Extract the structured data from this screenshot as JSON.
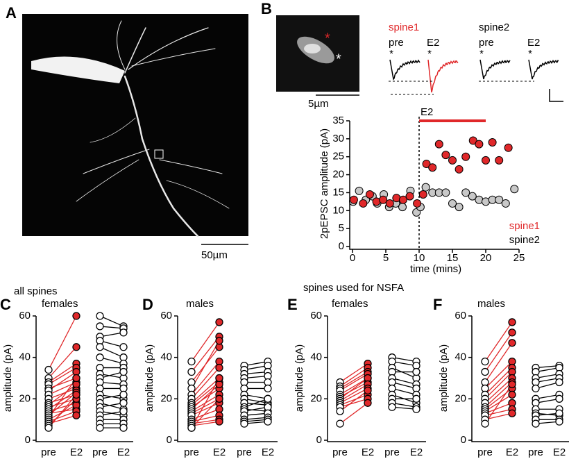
{
  "panel_labels": [
    "A",
    "B",
    "C",
    "D",
    "E",
    "F"
  ],
  "image_a": {
    "scale_label": "50µm"
  },
  "image_b": {
    "scale_label": "5µm",
    "markers": [
      "*",
      "*"
    ]
  },
  "traces": [
    {
      "title": "spine1",
      "color": "#e0282a",
      "conditions": [
        "pre",
        "E2"
      ],
      "markers": [
        "*",
        "*"
      ]
    },
    {
      "title": "spine2",
      "color": "#000000",
      "conditions": [
        "pre",
        "E2"
      ],
      "markers": [
        "*",
        "*"
      ]
    }
  ],
  "groups": [
    {
      "heading": "all spines"
    },
    {
      "heading": "spines used for NSFA"
    }
  ],
  "chart_data": [
    {
      "type": "scatter",
      "ylabel": "2pEPSC amplitude (pA)",
      "xlabel": "time (mins)",
      "xlim": [
        0,
        25
      ],
      "ylim": [
        0,
        35
      ],
      "xticks": [
        0,
        5,
        10,
        15,
        20,
        25
      ],
      "yticks": [
        0,
        5,
        10,
        15,
        20,
        25,
        30,
        35
      ],
      "event": {
        "label": "E2",
        "start": 10,
        "end": 20,
        "level": 35,
        "color": "#e0282a"
      },
      "series": [
        {
          "name": "spine2",
          "color": "#c8c8c8",
          "text_color": "#000000",
          "x": [
            0.1,
            1,
            2,
            3,
            3.7,
            4.7,
            5.5,
            6.5,
            7.5,
            8.7,
            9.6,
            10.2,
            11,
            12,
            13,
            14,
            15,
            16,
            17,
            18,
            19,
            20,
            21,
            22,
            23,
            24.3
          ],
          "values": [
            12.5,
            15.5,
            13,
            14,
            12,
            14.5,
            11,
            12,
            11,
            15.5,
            9.5,
            11,
            16.5,
            15,
            15,
            15,
            12,
            11,
            15,
            14,
            13,
            12.5,
            13,
            13,
            12,
            16
          ]
        },
        {
          "name": "spine1",
          "color": "#e0282a",
          "text_color": "#e0282a",
          "x": [
            0.2,
            1.6,
            2.6,
            3.6,
            4.6,
            5.6,
            6.6,
            7.6,
            8.6,
            9.7,
            10.6,
            11.1,
            12,
            13,
            14,
            15,
            16,
            17,
            18.1,
            19,
            20,
            21,
            22,
            23.4
          ],
          "values": [
            13,
            12,
            14.5,
            12.5,
            13,
            12,
            13.5,
            13,
            14,
            12,
            14.5,
            23,
            22,
            28.5,
            25.5,
            24,
            21.5,
            25,
            29.5,
            28.5,
            24,
            29,
            24,
            27.5
          ]
        }
      ]
    },
    {
      "type": "paired",
      "title": "females",
      "ylabel": "amplitude (pA)",
      "ylim": [
        0,
        60
      ],
      "yticks": [
        0,
        20,
        40,
        60
      ],
      "categories": [
        "pre",
        "E2",
        "pre",
        "E2"
      ],
      "pairs": [
        {
          "color": "#e0282a",
          "pre_fill": "#ffffff",
          "post_fill": "#e0282a",
          "pre": [
            34,
            30,
            28,
            27,
            25,
            24,
            22,
            20,
            18,
            17,
            16,
            15,
            14,
            13,
            12,
            11,
            10,
            9,
            8,
            7,
            6
          ],
          "post": [
            60,
            45,
            37,
            35,
            30,
            33,
            28,
            25,
            22,
            27,
            20,
            24,
            18,
            15,
            23,
            30,
            17,
            14,
            12,
            20,
            22
          ]
        },
        {
          "color": "#000000",
          "pre_fill": "#ffffff",
          "post_fill": "#ffffff",
          "pre": [
            60,
            55,
            50,
            48,
            45,
            40,
            35,
            32,
            30,
            28,
            25,
            22,
            20,
            18,
            16,
            14,
            12,
            10,
            8,
            6
          ],
          "post": [
            55,
            54,
            52,
            45,
            40,
            37,
            35,
            30,
            33,
            27,
            25,
            20,
            22,
            15,
            18,
            12,
            14,
            10,
            8,
            6
          ]
        }
      ]
    },
    {
      "type": "paired",
      "title": "males",
      "ylabel": "amplitude (pA)",
      "ylim": [
        0,
        60
      ],
      "yticks": [
        0,
        20,
        40,
        60
      ],
      "categories": [
        "pre",
        "E2",
        "pre",
        "E2"
      ],
      "pairs": [
        {
          "color": "#e0282a",
          "pre_fill": "#ffffff",
          "post_fill": "#e0282a",
          "pre": [
            38,
            33,
            28,
            25,
            22,
            20,
            18,
            17,
            16,
            15,
            14,
            13,
            12,
            10,
            9,
            8,
            7,
            6,
            6
          ],
          "post": [
            57,
            50,
            45,
            48,
            38,
            35,
            30,
            28,
            25,
            27,
            22,
            20,
            18,
            15,
            12,
            10,
            9,
            20,
            30
          ]
        },
        {
          "color": "#000000",
          "pre_fill": "#ffffff",
          "post_fill": "#ffffff",
          "pre": [
            36,
            34,
            32,
            30,
            28,
            25,
            22,
            20,
            18,
            16,
            15,
            14,
            12,
            10,
            9,
            8
          ],
          "post": [
            38,
            36,
            33,
            31,
            28,
            25,
            20,
            18,
            17,
            20,
            14,
            16,
            13,
            11,
            10,
            9
          ]
        }
      ]
    },
    {
      "type": "paired",
      "title": "females",
      "ylabel": "amplitude (pA)",
      "ylim": [
        0,
        60
      ],
      "yticks": [
        0,
        20,
        40,
        60
      ],
      "categories": [
        "pre",
        "E2",
        "pre",
        "E2"
      ],
      "pairs": [
        {
          "color": "#e0282a",
          "pre_fill": "#ffffff",
          "post_fill": "#e0282a",
          "pre": [
            28,
            26,
            25,
            24,
            22,
            21,
            20,
            19,
            18,
            17,
            16,
            14,
            8
          ],
          "post": [
            37,
            35,
            33,
            32,
            30,
            28,
            30,
            27,
            25,
            22,
            20,
            24,
            18
          ]
        },
        {
          "color": "#000000",
          "pre_fill": "#ffffff",
          "post_fill": "#ffffff",
          "pre": [
            40,
            38,
            35,
            33,
            30,
            28,
            25,
            22,
            20,
            18,
            16
          ],
          "post": [
            38,
            36,
            30,
            33,
            27,
            25,
            22,
            18,
            20,
            16,
            15
          ]
        }
      ]
    },
    {
      "type": "paired",
      "title": "males",
      "ylabel": "amplitude (pA)",
      "ylim": [
        0,
        60
      ],
      "yticks": [
        0,
        20,
        40,
        60
      ],
      "categories": [
        "pre",
        "E2",
        "pre",
        "E2"
      ],
      "pairs": [
        {
          "color": "#e0282a",
          "pre_fill": "#ffffff",
          "post_fill": "#e0282a",
          "pre": [
            38,
            33,
            28,
            25,
            22,
            20,
            18,
            16,
            15,
            14,
            13,
            12,
            10,
            8
          ],
          "post": [
            57,
            52,
            47,
            38,
            35,
            33,
            30,
            28,
            25,
            22,
            18,
            15,
            13,
            27
          ]
        },
        {
          "color": "#000000",
          "pre_fill": "#ffffff",
          "post_fill": "#ffffff",
          "pre": [
            35,
            33,
            30,
            28,
            25,
            20,
            18,
            15,
            13,
            12,
            10,
            8
          ],
          "post": [
            36,
            35,
            32,
            30,
            28,
            22,
            20,
            15,
            12,
            13,
            10,
            9
          ]
        }
      ]
    }
  ]
}
